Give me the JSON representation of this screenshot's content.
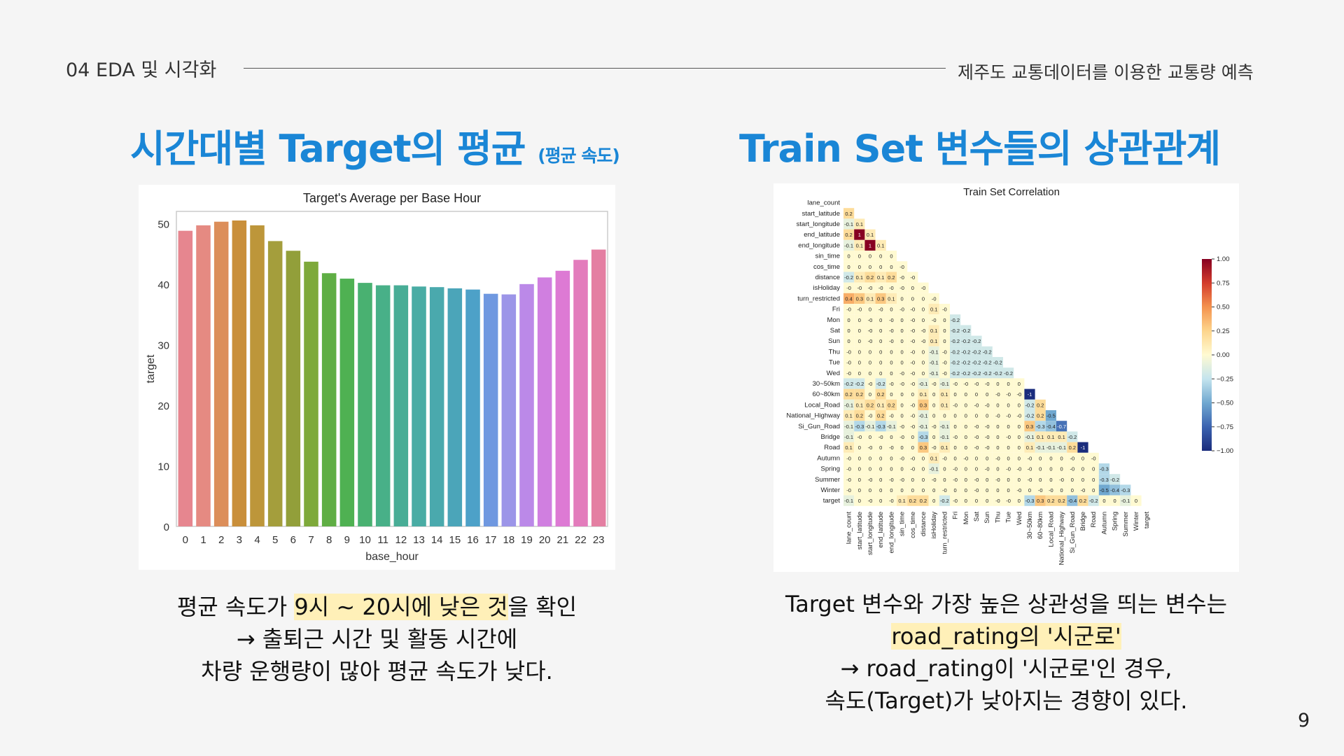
{
  "header": {
    "section": "04 EDA 및 시각화",
    "project": "제주도 교통데이터를 이용한 교통량 예측"
  },
  "left": {
    "title_main": "시간대별 Target의 평균",
    "title_sub": "(평균 속도)",
    "caption": {
      "l1_a": "평균 속도가 ",
      "l1_hl": "9시 ~ 20시에 낮은 것",
      "l1_b": "을 확인",
      "l2": "→ 출퇴근 시간 및 활동 시간에",
      "l3": "차량 운행량이 많아 평균 속도가 낮다."
    }
  },
  "right": {
    "title": "Train Set 변수들의 상관관계",
    "caption": {
      "l1": "Target 변수와 가장 높은 상관성을 띄는 변수는",
      "l2_hl": "road_rating의 '시군로'",
      "l3": "→ road_rating이 '시군로'인 경우,",
      "l4": "속도(Target)가 낮아지는 경향이 있다."
    }
  },
  "page_number": "9",
  "chart_data": [
    {
      "type": "bar",
      "title": "Target's Average per Base Hour",
      "xlabel": "base_hour",
      "ylabel": "target",
      "ylim": [
        0,
        52
      ],
      "yticks": [
        0,
        10,
        20,
        30,
        40,
        50
      ],
      "categories": [
        "0",
        "1",
        "2",
        "3",
        "4",
        "5",
        "6",
        "7",
        "8",
        "9",
        "10",
        "11",
        "12",
        "13",
        "14",
        "15",
        "16",
        "17",
        "18",
        "19",
        "20",
        "21",
        "22",
        "23"
      ],
      "values": [
        48.8,
        49.7,
        50.3,
        50.5,
        49.7,
        47.1,
        45.5,
        43.7,
        41.8,
        40.9,
        40.2,
        39.8,
        39.8,
        39.6,
        39.5,
        39.3,
        39.1,
        38.4,
        38.3,
        40.0,
        41.1,
        42.2,
        44.0,
        45.7
      ],
      "colors": [
        "#e6868f",
        "#e58a82",
        "#dc8e5a",
        "#c98f3a",
        "#bd963a",
        "#a49e3c",
        "#929f3a",
        "#7ea93a",
        "#5fae44",
        "#4fb152",
        "#49b171",
        "#48b088",
        "#48ad96",
        "#49aca4",
        "#4aa9ad",
        "#4ba5b9",
        "#4da1c8",
        "#6f98e0",
        "#9c95e8",
        "#bb89e8",
        "#d07fe0",
        "#dd7ad4",
        "#e37cbc",
        "#e47fa2"
      ],
      "grid": false
    },
    {
      "type": "heatmap",
      "title": "Train Set Correlation",
      "variables": [
        "lane_count",
        "start_latitude",
        "start_longitude",
        "end_latitude",
        "end_longitude",
        "sin_time",
        "cos_time",
        "distance",
        "isHoliday",
        "turn_restricted",
        "Fri",
        "Mon",
        "Sat",
        "Sun",
        "Thu",
        "Tue",
        "Wed",
        "30~50km",
        "60~80km",
        "Local_Road",
        "National_Highway",
        "Si_Gun_Road",
        "Bridge",
        "Road",
        "Autumn",
        "Spring",
        "Summer",
        "Winter",
        "target"
      ],
      "colorbar": {
        "min": -1.0,
        "max": 1.0,
        "ticks": [
          "1.00",
          "0.75",
          "0.50",
          "0.25",
          "0.00",
          "−0.25",
          "−0.50",
          "−0.75",
          "−1.00"
        ]
      },
      "lower_triangle": [
        [],
        [
          "0.2"
        ],
        [
          "-0.1",
          "0.1"
        ],
        [
          "0.2",
          "1",
          "0.1"
        ],
        [
          "-0.1",
          "0.1",
          "1",
          "0.1"
        ],
        [
          "0",
          "0",
          "0",
          "0",
          "0"
        ],
        [
          "0",
          "0",
          "0",
          "0",
          "0",
          "-0"
        ],
        [
          "-0.2",
          "0.1",
          "0.2",
          "0.1",
          "0.2",
          "-0",
          "-0"
        ],
        [
          "-0",
          "-0",
          "-0",
          "-0",
          "-0",
          "-0",
          "0",
          "-0"
        ],
        [
          "0.4",
          "0.3",
          "0.1",
          "0.3",
          "0.1",
          "0",
          "0",
          "0",
          "-0"
        ],
        [
          "-0",
          "-0",
          "0",
          "-0",
          "0",
          "-0",
          "-0",
          "0",
          "0.1",
          "-0"
        ],
        [
          "0",
          "0",
          "-0",
          "0",
          "-0",
          "0",
          "-0",
          "0",
          "-0",
          "0",
          "-0.2"
        ],
        [
          "0",
          "0",
          "-0",
          "0",
          "-0",
          "0",
          "-0",
          "-0",
          "0.1",
          "0",
          "-0.2",
          "-0.2"
        ],
        [
          "0",
          "0",
          "-0",
          "0",
          "-0",
          "0",
          "-0",
          "-0",
          "0.1",
          "0",
          "-0.2",
          "-0.2",
          "-0.2"
        ],
        [
          "-0",
          "0",
          "0",
          "0",
          "0",
          "0",
          "-0",
          "0",
          "-0.1",
          "-0",
          "-0.2",
          "-0.2",
          "-0.2",
          "-0.2"
        ],
        [
          "-0",
          "0",
          "0",
          "0",
          "0",
          "0",
          "-0",
          "0",
          "-0.1",
          "-0",
          "-0.2",
          "-0.2",
          "-0.2",
          "-0.2",
          "-0.2"
        ],
        [
          "-0",
          "0",
          "0",
          "0",
          "0",
          "-0",
          "-0",
          "0",
          "-0.1",
          "-0",
          "-0.2",
          "-0.2",
          "-0.2",
          "-0.2",
          "-0.2",
          "-0.2"
        ],
        [
          "-0.2",
          "-0.2",
          "-0",
          "-0.2",
          "-0",
          "-0",
          "-0",
          "-0.1",
          "-0",
          "-0.1",
          "-0",
          "-0",
          "-0",
          "-0",
          "0",
          "0",
          "0"
        ],
        [
          "0.2",
          "0.2",
          "0",
          "0.2",
          "0",
          "0",
          "0",
          "0.1",
          "0",
          "0.1",
          "0",
          "0",
          "0",
          "0",
          "-0",
          "-0",
          "-0",
          "-1"
        ],
        [
          "-0.1",
          "0.1",
          "0.2",
          "0.1",
          "0.2",
          "0",
          "-0",
          "0.3",
          "0",
          "0.1",
          "-0",
          "0",
          "-0",
          "-0",
          "0",
          "0",
          "0",
          "-0.2",
          "0.2"
        ],
        [
          "0.1",
          "0.2",
          "-0",
          "0.2",
          "-0",
          "0",
          "-0",
          "-0.1",
          "0",
          "0",
          "0",
          "0",
          "0",
          "0",
          "-0",
          "-0",
          "-0",
          "-0.2",
          "0.2",
          "-0.5"
        ],
        [
          "-0.1",
          "-0.3",
          "-0.1",
          "-0.3",
          "-0.1",
          "-0",
          "-0",
          "-0.1",
          "-0",
          "-0.1",
          "0",
          "0",
          "-0",
          "-0",
          "0",
          "0",
          "0",
          "0.3",
          "-0.3",
          "-0.4",
          "-0.7"
        ],
        [
          "-0.1",
          "-0",
          "0",
          "-0",
          "0",
          "-0",
          "0",
          "-0.3",
          "0",
          "-0.1",
          "-0",
          "0",
          "-0",
          "-0",
          "0",
          "-0",
          "0",
          "-0.1",
          "0.1",
          "0.1",
          "0.1",
          "-0.2"
        ],
        [
          "0.1",
          "0",
          "-0",
          "0",
          "-0",
          "0",
          "0",
          "0.3",
          "-0",
          "0.1",
          "0",
          "0",
          "-0",
          "-0",
          "0",
          "0",
          "0",
          "0.1",
          "-0.1",
          "-0.1",
          "-0.1",
          "0.2",
          "-1"
        ],
        [
          "-0",
          "0",
          "0",
          "0",
          "0",
          "-0",
          "-0",
          "0",
          "0.1",
          "-0",
          "0",
          "-0",
          "0",
          "0",
          "-0",
          "0",
          "0",
          "-0",
          "0",
          "0",
          "0",
          "-0",
          "0",
          "-0"
        ],
        [
          "-0",
          "0",
          "0",
          "0",
          "0",
          "0",
          "-0",
          "0",
          "-0.1",
          "0",
          "-0",
          "0",
          "0",
          "-0",
          "0",
          "-0",
          "-0",
          "-0",
          "0",
          "0",
          "0",
          "-0",
          "0",
          "0",
          "-0.3"
        ],
        [
          "-0",
          "0",
          "-0",
          "0",
          "-0",
          "-0",
          "0",
          "0",
          "-0",
          "0",
          "-0",
          "0",
          "-0",
          "0",
          "-0",
          "0",
          "0",
          "-0",
          "0",
          "0",
          "-0",
          "0",
          "0",
          "0",
          "-0.3",
          "-0.2"
        ],
        [
          "-0",
          "0",
          "0",
          "0",
          "0",
          "0",
          "0",
          "0",
          "0",
          "-0",
          "0",
          "0",
          "-0",
          "0",
          "0",
          "0",
          "-0",
          "0",
          "-0",
          "-0",
          "0",
          "0",
          "-0",
          "0",
          "-0.5",
          "-0.4",
          "-0.3"
        ],
        [
          "-0.1",
          "0",
          "-0",
          "0",
          "-0",
          "0.1",
          "0.2",
          "0.2",
          "0",
          "-0.2",
          "-0",
          "0",
          "0",
          "0",
          "-0",
          "-0",
          "0",
          "-0.3",
          "0.3",
          "0.2",
          "0.2",
          "-0.4",
          "0.2",
          "-0.2",
          "0",
          "0",
          "-0.1",
          "0"
        ]
      ]
    }
  ]
}
